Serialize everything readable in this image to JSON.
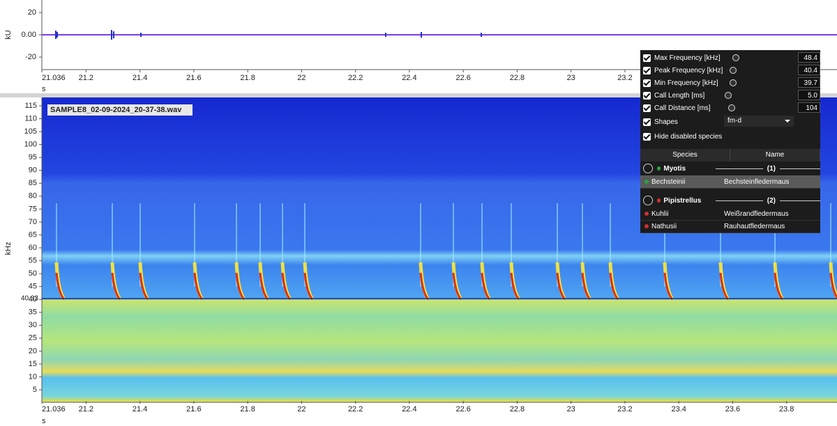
{
  "waveform": {
    "y_label": "kU",
    "yticks": [
      20,
      {
        "value": 0,
        "label": "0.00"
      },
      -20
    ],
    "x_label": "s",
    "xticks": [
      21.036,
      21.2,
      21.4,
      21.6,
      21.8,
      22,
      22.2,
      22.4,
      22.6,
      22.8,
      23,
      23.2
    ]
  },
  "spectrogram": {
    "file_label": "SAMPLE8_02-09-2024_20-37-38.wav",
    "y_label": "kHz",
    "yticks": [
      115,
      110,
      105,
      100,
      95,
      90,
      85,
      80,
      75,
      70,
      65,
      60,
      55,
      50,
      45,
      40,
      35,
      30,
      25,
      20,
      15,
      10,
      5
    ],
    "marker": 40.33,
    "x_label": "s",
    "xticks": [
      21.036,
      21.2,
      21.4,
      21.6,
      21.8,
      22,
      22.2,
      22.4,
      22.6,
      22.8,
      23,
      23.2,
      23.4,
      23.6,
      23.8
    ]
  },
  "panel": {
    "filters": [
      {
        "label": "Max Frequency [kHz]",
        "value": "48.4"
      },
      {
        "label": "Peak Frequency [kHz]",
        "value": "40.4"
      },
      {
        "label": "Min Frequency [kHz]",
        "value": "39.7"
      },
      {
        "label": "Call Length [ms]",
        "value": "5.0"
      },
      {
        "label": "Call Distance [ms]",
        "value": "104"
      }
    ],
    "shapes_label": "Shapes",
    "shapes_value": "fm-d",
    "hide_label": "Hide disabled species",
    "columns": [
      "Species",
      "Name"
    ],
    "groups": [
      {
        "name": "Myotis",
        "count": "(1)",
        "rows": [
          [
            "Bechsteinii",
            "Bechsteinfledermaus"
          ]
        ]
      },
      {
        "name": "Pipistrellus",
        "count": "(2)",
        "rows": [
          [
            "Kuhlii",
            "Weißrandfledermaus"
          ],
          [
            "Nathusii",
            "Rauhautfledermaus"
          ]
        ]
      }
    ]
  }
}
